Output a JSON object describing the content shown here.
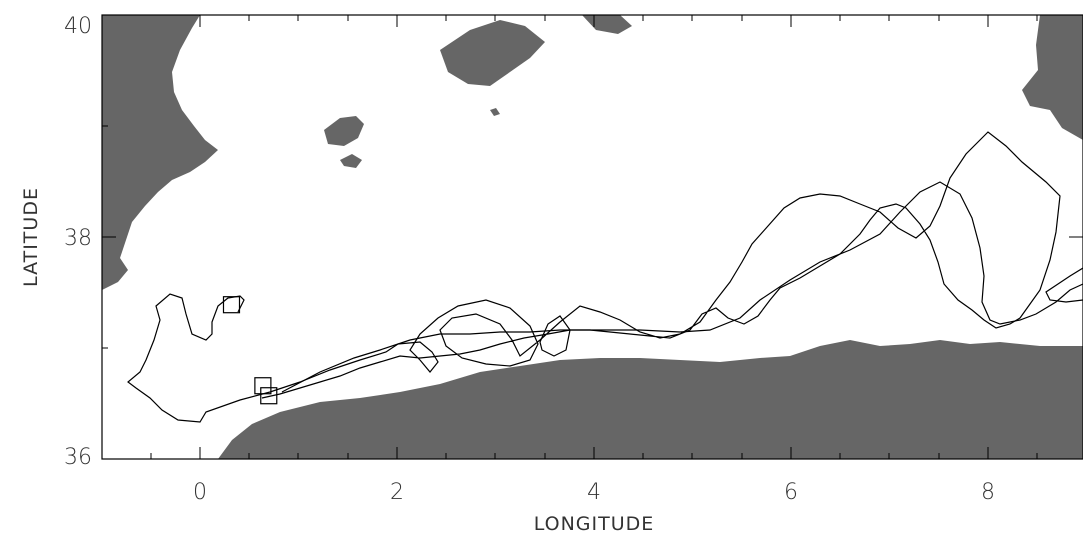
{
  "map": {
    "xlabel": "LONGITUDE",
    "ylabel": "LATITUDE",
    "x_range": [
      -1,
      9
    ],
    "y_range": [
      36,
      40
    ],
    "x_ticks": [
      "0",
      "2",
      "4",
      "6",
      "8"
    ],
    "y_ticks": [
      "40",
      "38",
      "36"
    ],
    "land_color": "#666666",
    "sea_color": "#ffffff",
    "track_color": "#000000",
    "track_marker": "square",
    "track_start_markers": [
      {
        "lon": 0.32,
        "lat": 37.39
      },
      {
        "lon": 0.64,
        "lat": 36.66
      },
      {
        "lon": 0.7,
        "lat": 36.57
      }
    ]
  }
}
